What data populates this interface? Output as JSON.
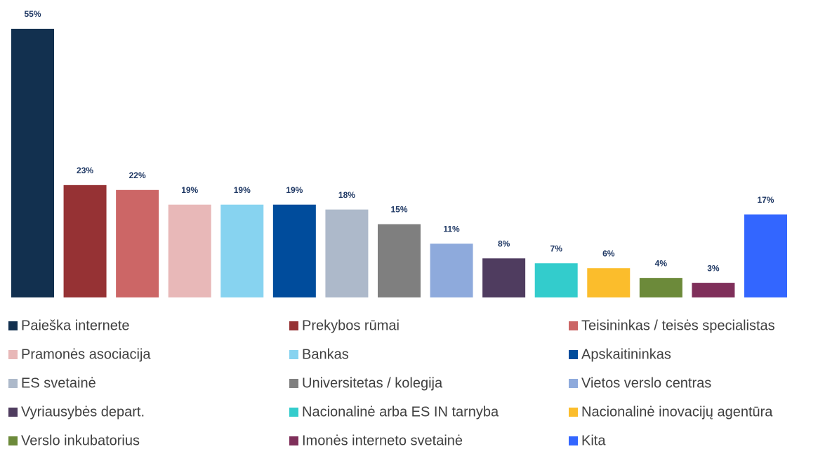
{
  "chart_data": {
    "type": "bar",
    "categories": [
      "Paieška internete",
      "Prekybos rūmai",
      "Teisininkas / teisės specialistas",
      "Pramonės asociacija",
      "Bankas",
      "Apskaitininkas",
      "ES svetainė",
      "Universitetas / kolegija",
      "Vietos verslo centras",
      "Vyriausybės depart.",
      "Nacionalinė arba ES IN tarnyba",
      "Nacionalinė inovacijų agentūra",
      "Verslo inkubatorius",
      "Imonės interneto svetainė",
      "Kita"
    ],
    "values": [
      55,
      23,
      22,
      19,
      19,
      19,
      18,
      15,
      11,
      8,
      7,
      6,
      4,
      3,
      17
    ],
    "value_labels": [
      "55%",
      "23%",
      "22%",
      "19%",
      "19%",
      "19%",
      "18%",
      "15%",
      "11%",
      "8%",
      "7%",
      "6%",
      "4%",
      "3%",
      "17%"
    ],
    "colors": [
      "#12304f",
      "#963234",
      "#cc6666",
      "#e8b8b8",
      "#87d3f0",
      "#004c9c",
      "#adb9ca",
      "#7f7f7f",
      "#8eaadc",
      "#4f3c5f",
      "#33cccc",
      "#fbbd2c",
      "#6c8a3a",
      "#7f2f5a",
      "#3366ff"
    ],
    "legend": "bottom"
  }
}
